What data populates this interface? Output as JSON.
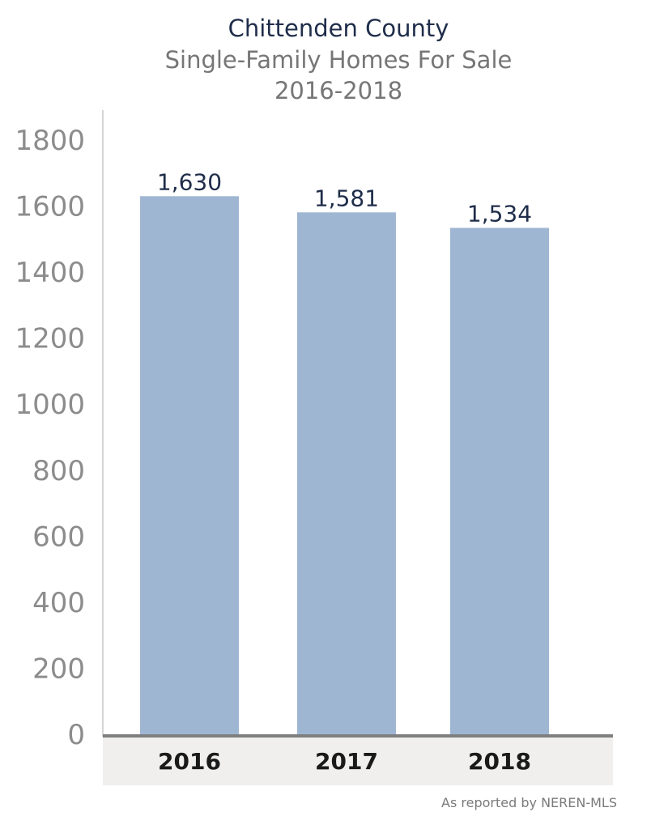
{
  "chart_data": {
    "type": "bar",
    "title": "Chittenden County",
    "subtitle": "Single-Family Homes For Sale",
    "period": "2016-2018",
    "categories": [
      "2016",
      "2017",
      "2018"
    ],
    "values": [
      1630,
      1581,
      1534
    ],
    "value_labels": [
      "1,630",
      "1,581",
      "1,534"
    ],
    "ylim": [
      0,
      1800
    ],
    "yticks": [
      "0",
      "200",
      "400",
      "600",
      "800",
      "1000",
      "1200",
      "1400",
      "1600",
      "1800"
    ],
    "xlabel": "",
    "ylabel": "",
    "grid": false,
    "bar_color": "#9fb6d3",
    "footnote": "As reported by NEREN-MLS"
  }
}
